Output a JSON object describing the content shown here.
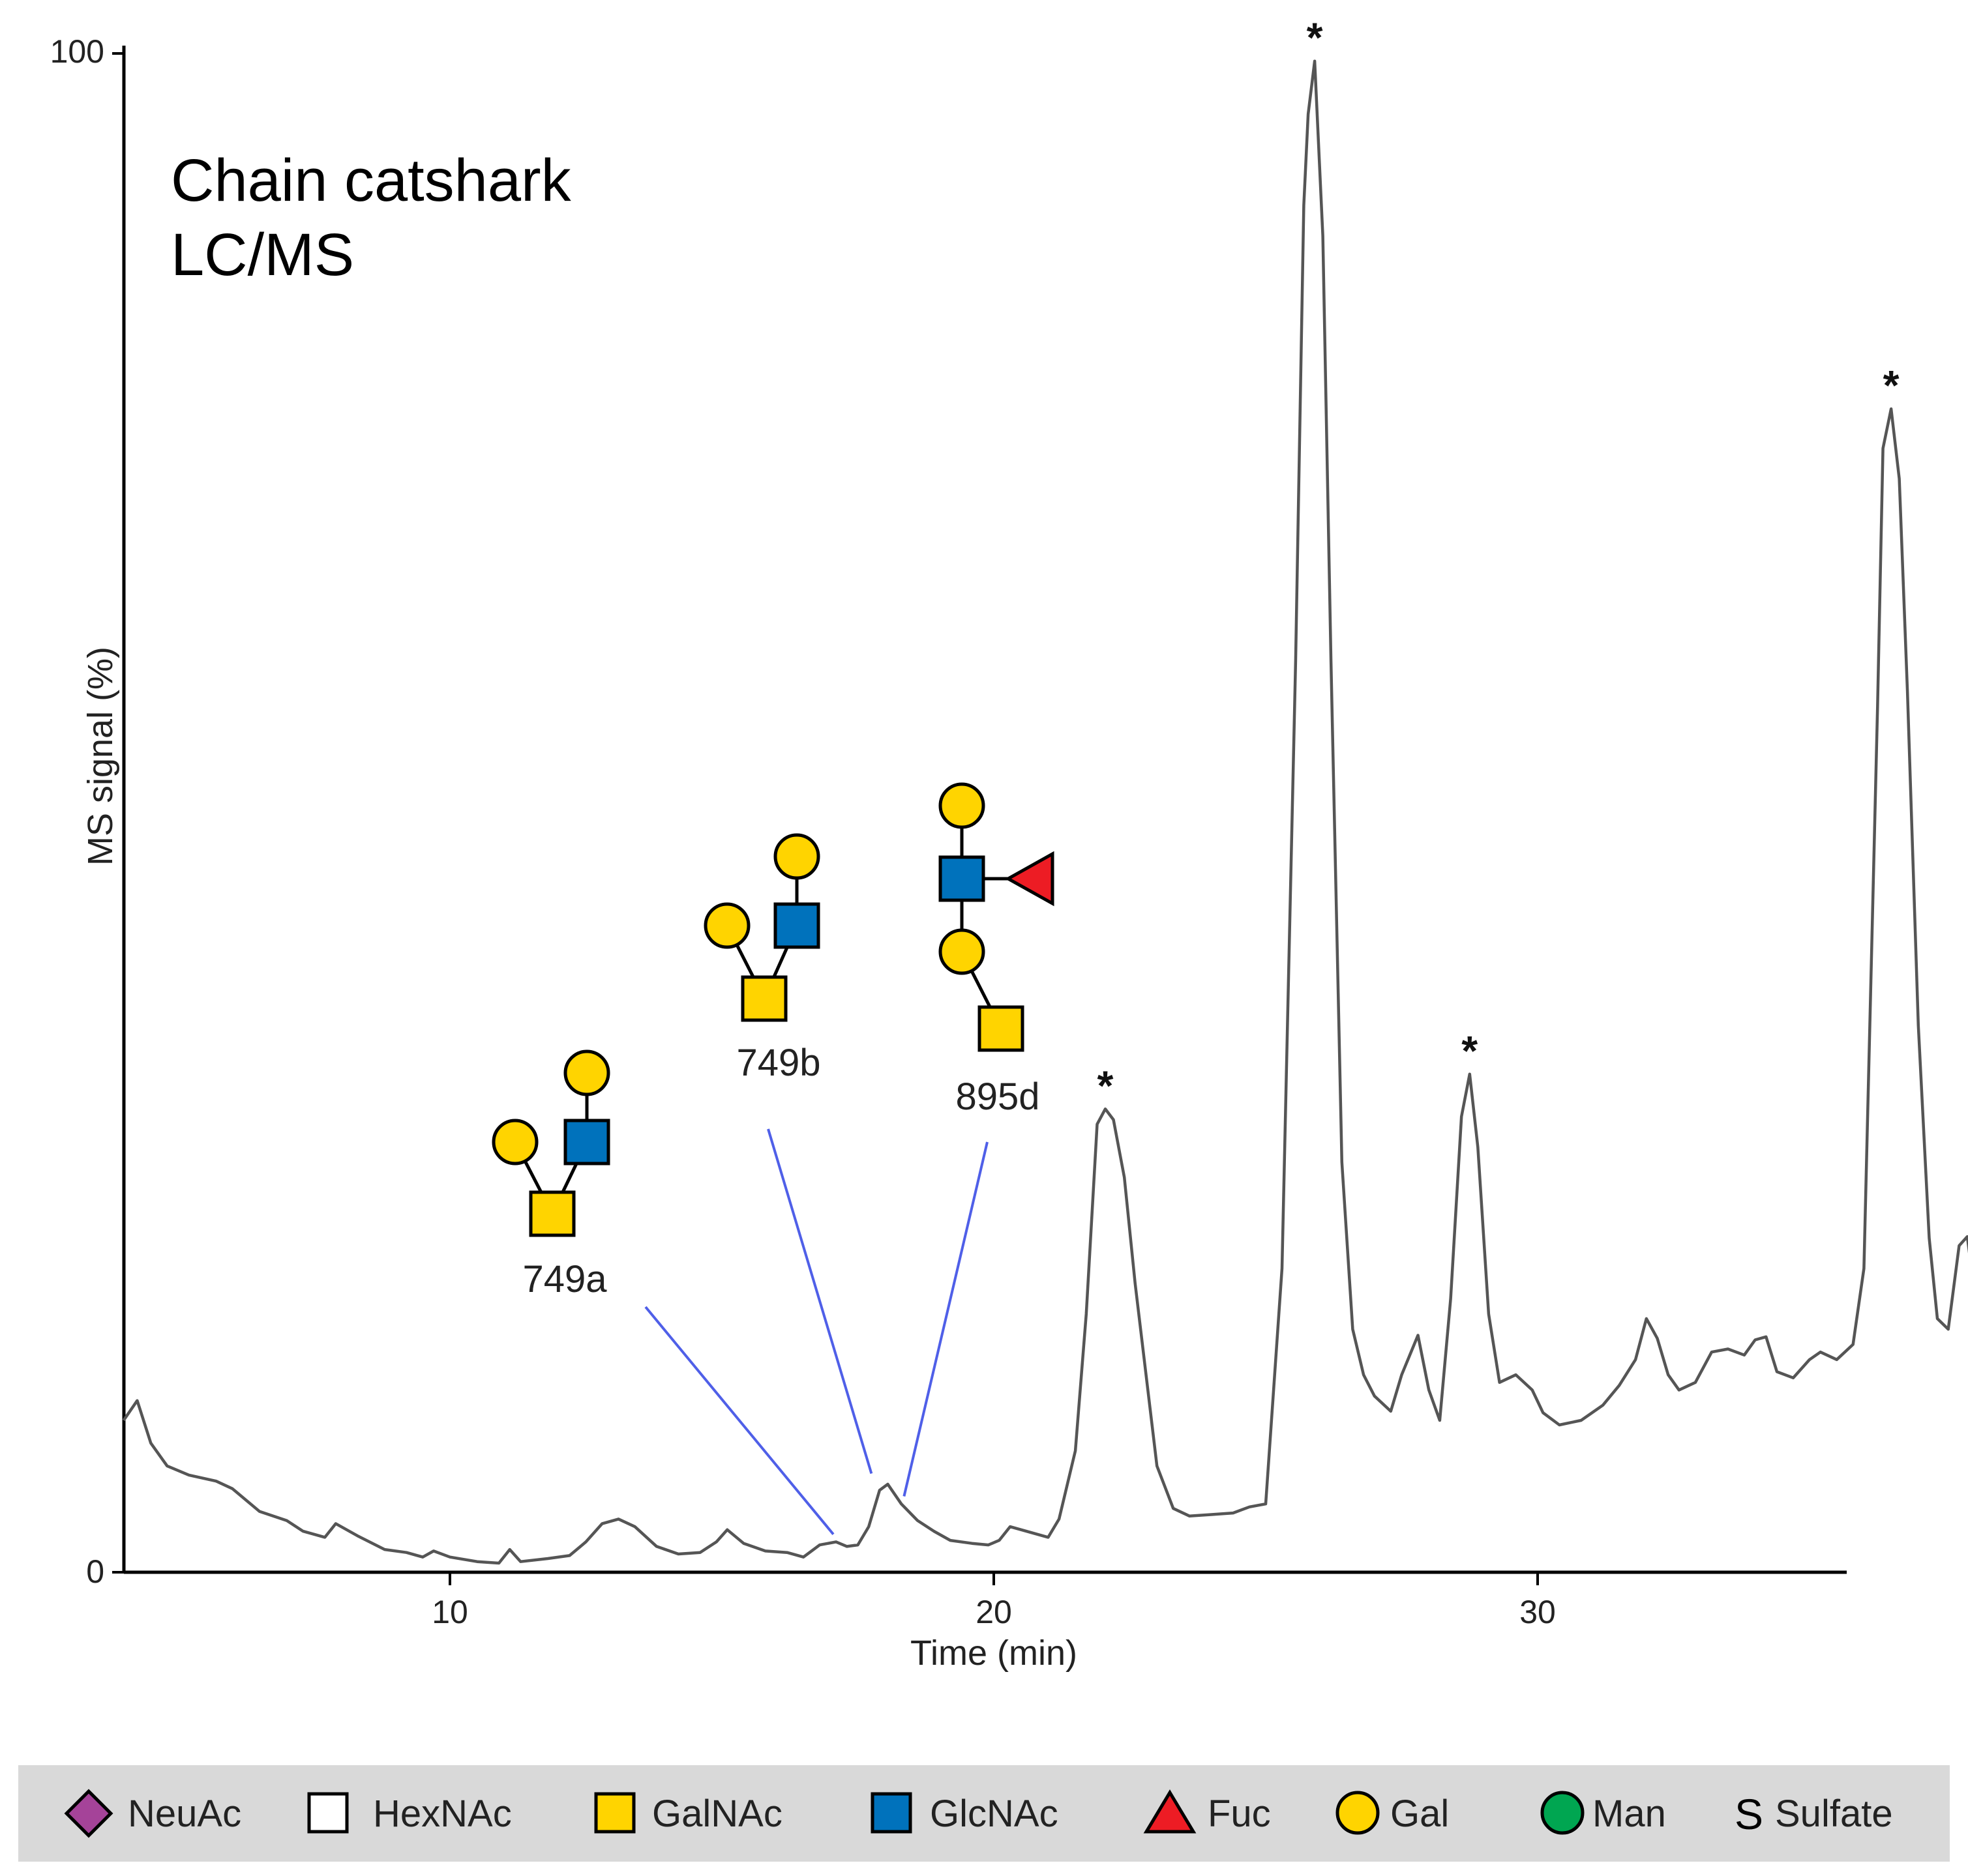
{
  "chart_data": {
    "type": "line",
    "title": "Chain catshark",
    "subtitle": "LC/MS",
    "xlabel": "Time (min)",
    "ylabel": "MS signal (%)",
    "xlim": [
      4,
      35.6
    ],
    "ylim": [
      0,
      100
    ],
    "x_ticks": [
      10,
      20,
      30
    ],
    "y_ticks": [
      0,
      100
    ],
    "grid": false,
    "series": [
      {
        "values": [
          [
            4.0,
            10.0
          ],
          [
            4.25,
            11.3
          ],
          [
            4.5,
            8.5
          ],
          [
            4.8,
            7.0
          ],
          [
            5.2,
            6.4
          ],
          [
            5.7,
            6.0
          ],
          [
            6.0,
            5.5
          ],
          [
            6.5,
            4.0
          ],
          [
            7.0,
            3.4
          ],
          [
            7.3,
            2.7
          ],
          [
            7.7,
            2.3
          ],
          [
            7.9,
            3.2
          ],
          [
            8.3,
            2.4
          ],
          [
            8.8,
            1.5
          ],
          [
            9.2,
            1.3
          ],
          [
            9.5,
            1.0
          ],
          [
            9.7,
            1.4
          ],
          [
            10.0,
            1.0
          ],
          [
            10.5,
            0.7
          ],
          [
            10.9,
            0.6
          ],
          [
            11.1,
            1.5
          ],
          [
            11.3,
            0.7
          ],
          [
            11.8,
            0.9
          ],
          [
            12.2,
            1.1
          ],
          [
            12.5,
            2.0
          ],
          [
            12.8,
            3.2
          ],
          [
            13.1,
            3.5
          ],
          [
            13.4,
            3.0
          ],
          [
            13.8,
            1.7
          ],
          [
            14.2,
            1.2
          ],
          [
            14.6,
            1.3
          ],
          [
            14.9,
            2.0
          ],
          [
            15.1,
            2.8
          ],
          [
            15.4,
            1.9
          ],
          [
            15.8,
            1.4
          ],
          [
            16.2,
            1.3
          ],
          [
            16.5,
            1.0
          ],
          [
            16.8,
            1.8
          ],
          [
            17.1,
            2.0
          ],
          [
            17.3,
            1.7
          ],
          [
            17.5,
            1.8
          ],
          [
            17.7,
            3.0
          ],
          [
            17.9,
            5.4
          ],
          [
            18.05,
            5.8
          ],
          [
            18.3,
            4.5
          ],
          [
            18.6,
            3.4
          ],
          [
            18.9,
            2.7
          ],
          [
            19.2,
            2.1
          ],
          [
            19.6,
            1.9
          ],
          [
            19.9,
            1.8
          ],
          [
            20.1,
            2.1
          ],
          [
            20.3,
            3.0
          ],
          [
            20.6,
            2.7
          ],
          [
            21.0,
            2.3
          ],
          [
            21.2,
            3.5
          ],
          [
            21.5,
            8.0
          ],
          [
            21.7,
            17.0
          ],
          [
            21.9,
            29.5
          ],
          [
            22.05,
            30.5
          ],
          [
            22.2,
            29.8
          ],
          [
            22.4,
            26.0
          ],
          [
            22.6,
            19.0
          ],
          [
            22.8,
            13.0
          ],
          [
            23.0,
            7.0
          ],
          [
            23.3,
            4.2
          ],
          [
            23.6,
            3.7
          ],
          [
            24.0,
            3.8
          ],
          [
            24.4,
            3.9
          ],
          [
            24.7,
            4.3
          ],
          [
            25.0,
            4.5
          ],
          [
            25.3,
            20.0
          ],
          [
            25.55,
            60.0
          ],
          [
            25.7,
            90.0
          ],
          [
            25.78,
            96.0
          ],
          [
            25.9,
            99.5
          ],
          [
            26.05,
            88.0
          ],
          [
            26.2,
            60.0
          ],
          [
            26.4,
            27.0
          ],
          [
            26.6,
            16.0
          ],
          [
            26.8,
            13.0
          ],
          [
            27.0,
            11.6
          ],
          [
            27.3,
            10.6
          ],
          [
            27.5,
            13.0
          ],
          [
            27.8,
            15.6
          ],
          [
            28.0,
            12.0
          ],
          [
            28.2,
            10.0
          ],
          [
            28.4,
            18.0
          ],
          [
            28.6,
            30.0
          ],
          [
            28.75,
            32.8
          ],
          [
            28.9,
            28.0
          ],
          [
            29.1,
            17.0
          ],
          [
            29.3,
            12.5
          ],
          [
            29.6,
            13.0
          ],
          [
            29.9,
            12.0
          ],
          [
            30.1,
            10.5
          ],
          [
            30.4,
            9.7
          ],
          [
            30.8,
            10.0
          ],
          [
            31.2,
            11.0
          ],
          [
            31.5,
            12.3
          ],
          [
            31.8,
            14.0
          ],
          [
            32.0,
            16.7
          ],
          [
            32.2,
            15.4
          ],
          [
            32.4,
            13.0
          ],
          [
            32.6,
            12.0
          ],
          [
            32.9,
            12.5
          ],
          [
            33.2,
            14.5
          ],
          [
            33.5,
            14.7
          ],
          [
            33.8,
            14.3
          ],
          [
            34.0,
            15.3
          ],
          [
            34.2,
            15.5
          ],
          [
            34.4,
            13.2
          ],
          [
            34.7,
            12.8
          ],
          [
            35.0,
            14.0
          ],
          [
            35.2,
            14.5
          ],
          [
            35.5,
            14.0
          ],
          [
            35.8,
            15.0
          ],
          [
            36.0,
            20.0
          ],
          [
            36.25,
            57.0
          ],
          [
            36.35,
            74.0
          ],
          [
            36.5,
            76.6
          ],
          [
            36.65,
            72.0
          ],
          [
            36.8,
            58.0
          ],
          [
            37.0,
            36.0
          ],
          [
            37.2,
            22.0
          ],
          [
            37.35,
            16.7
          ],
          [
            37.55,
            16.0
          ],
          [
            37.75,
            21.5
          ],
          [
            37.9,
            22.1
          ],
          [
            38.05,
            18.0
          ],
          [
            38.2,
            17.6
          ]
        ]
      }
    ],
    "peak_markers": [
      {
        "label": "*",
        "x": 22.05,
        "y": 30.5
      },
      {
        "label": "*",
        "x": 25.9,
        "y": 99.5
      },
      {
        "label": "*",
        "x": 28.75,
        "y": 32.8
      },
      {
        "label": "*",
        "x": 36.5,
        "y": 76.6
      }
    ],
    "annotations": [
      {
        "label": "749a",
        "x": 17.05,
        "y": 2.5,
        "structure": "galnac-gal-glcnac-gal"
      },
      {
        "label": "749b",
        "x": 17.75,
        "y": 6.5,
        "structure": "galnac-gal-glcnac-gal"
      },
      {
        "label": "895d",
        "x": 18.35,
        "y": 5.0,
        "structure": "galnac-gal-glcnac-gal-fuc"
      }
    ],
    "legend": {
      "placement": "bottom",
      "items": [
        {
          "label": "NeuAc",
          "shape": "diamond",
          "color": "#a54399"
        },
        {
          "label": "HexNAc",
          "shape": "square",
          "color": "#ffffff"
        },
        {
          "label": "GalNAc",
          "shape": "square",
          "color": "#ffd400"
        },
        {
          "label": "GlcNAc",
          "shape": "square",
          "color": "#0072bc"
        },
        {
          "label": "Fuc",
          "shape": "triangle",
          "color": "#ed1c24"
        },
        {
          "label": "Gal",
          "shape": "circle",
          "color": "#ffd400"
        },
        {
          "label": "Man",
          "shape": "circle",
          "color": "#00a651"
        },
        {
          "label": "Sulfate",
          "shape": "letter",
          "symbol": "S",
          "color": "#000000"
        }
      ]
    },
    "colors": {
      "trace": "#555555",
      "axis": "#000000",
      "callout": "#4f5fe8",
      "legend_background": "#d9d9d9"
    }
  }
}
